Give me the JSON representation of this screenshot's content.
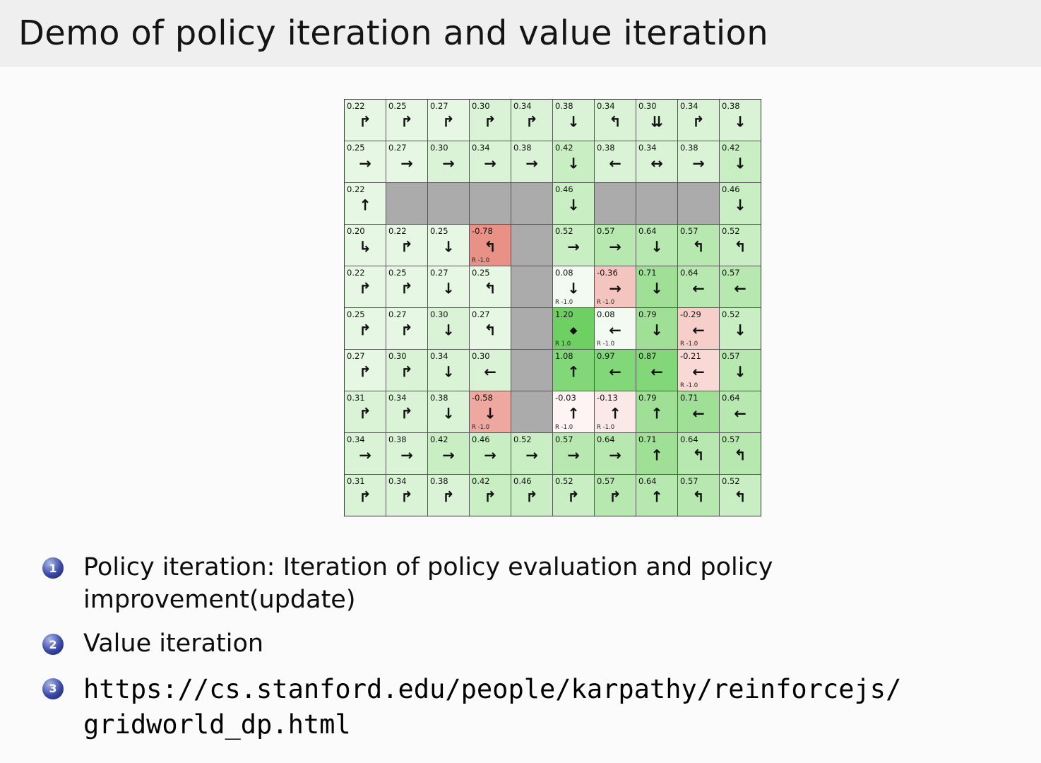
{
  "title": "Demo of policy iteration and value iteration",
  "list": [
    {
      "num": "1",
      "text": "Policy iteration: Iteration of policy evaluation and policy improvement(update)"
    },
    {
      "num": "2",
      "text": "Value iteration"
    },
    {
      "num": "3",
      "text": "https://cs.stanford.edu/people/karpathy/reinforcejs/gridworld_dp.html"
    }
  ],
  "grid": {
    "wall_color": "#ababab",
    "goal_reward": "R 1.0",
    "penalty_reward": "R -1.0",
    "rows": [
      [
        {
          "v": "0.22",
          "a": "↱",
          "bg": "#e6f8e3"
        },
        {
          "v": "0.25",
          "a": "↱",
          "bg": "#e6f8e3"
        },
        {
          "v": "0.27",
          "a": "↱",
          "bg": "#e6f8e3"
        },
        {
          "v": "0.30",
          "a": "↱",
          "bg": "#daf3d6"
        },
        {
          "v": "0.34",
          "a": "↱",
          "bg": "#daf3d6"
        },
        {
          "v": "0.38",
          "a": "↓",
          "bg": "#daf3d6"
        },
        {
          "v": "0.34",
          "a": "↰",
          "bg": "#daf3d6"
        },
        {
          "v": "0.30",
          "a": "⇊",
          "bg": "#daf3d6"
        },
        {
          "v": "0.34",
          "a": "↱",
          "bg": "#daf3d6"
        },
        {
          "v": "0.38",
          "a": "↓",
          "bg": "#daf3d6"
        }
      ],
      [
        {
          "v": "0.25",
          "a": "→",
          "bg": "#e6f8e3"
        },
        {
          "v": "0.27",
          "a": "→",
          "bg": "#e6f8e3"
        },
        {
          "v": "0.30",
          "a": "→",
          "bg": "#daf3d6"
        },
        {
          "v": "0.34",
          "a": "→",
          "bg": "#daf3d6"
        },
        {
          "v": "0.38",
          "a": "→",
          "bg": "#daf3d6"
        },
        {
          "v": "0.42",
          "a": "↓",
          "bg": "#c9eec3"
        },
        {
          "v": "0.38",
          "a": "←",
          "bg": "#daf3d6"
        },
        {
          "v": "0.34",
          "a": "↔",
          "bg": "#daf3d6"
        },
        {
          "v": "0.38",
          "a": "→",
          "bg": "#daf3d6"
        },
        {
          "v": "0.42",
          "a": "↓",
          "bg": "#c9eec3"
        }
      ],
      [
        {
          "v": "0.22",
          "a": "↑",
          "bg": "#e6f8e3"
        },
        {
          "wall": true
        },
        {
          "wall": true
        },
        {
          "wall": true
        },
        {
          "wall": true
        },
        {
          "v": "0.46",
          "a": "↓",
          "bg": "#c9eec3"
        },
        {
          "wall": true
        },
        {
          "wall": true
        },
        {
          "wall": true
        },
        {
          "v": "0.46",
          "a": "↓",
          "bg": "#c9eec3"
        }
      ],
      [
        {
          "v": "0.20",
          "a": "↳",
          "bg": "#e6f8e3"
        },
        {
          "v": "0.22",
          "a": "↱",
          "bg": "#e6f8e3"
        },
        {
          "v": "0.25",
          "a": "↓",
          "bg": "#e6f8e3"
        },
        {
          "v": "-0.78",
          "a": "↰",
          "bg": "#ea9187",
          "r": "R -1.0"
        },
        {
          "wall": true
        },
        {
          "v": "0.52",
          "a": "→",
          "bg": "#c9eec3"
        },
        {
          "v": "0.57",
          "a": "→",
          "bg": "#b7e8af"
        },
        {
          "v": "0.64",
          "a": "↓",
          "bg": "#b7e8af"
        },
        {
          "v": "0.57",
          "a": "↰",
          "bg": "#b7e8af"
        },
        {
          "v": "0.52",
          "a": "↰",
          "bg": "#c9eec3"
        }
      ],
      [
        {
          "v": "0.22",
          "a": "↱",
          "bg": "#e6f8e3"
        },
        {
          "v": "0.25",
          "a": "↱",
          "bg": "#e6f8e3"
        },
        {
          "v": "0.27",
          "a": "↓",
          "bg": "#e6f8e3"
        },
        {
          "v": "0.25",
          "a": "↰",
          "bg": "#e6f8e3"
        },
        {
          "wall": true
        },
        {
          "v": "0.08",
          "a": "↓",
          "bg": "#f3faf1",
          "r": "R -1.0"
        },
        {
          "v": "-0.36",
          "a": "→",
          "bg": "#f4c5bf",
          "r": "R -1.0"
        },
        {
          "v": "0.71",
          "a": "↓",
          "bg": "#a0e096"
        },
        {
          "v": "0.64",
          "a": "←",
          "bg": "#b7e8af"
        },
        {
          "v": "0.57",
          "a": "←",
          "bg": "#b7e8af"
        }
      ],
      [
        {
          "v": "0.25",
          "a": "↱",
          "bg": "#e6f8e3"
        },
        {
          "v": "0.27",
          "a": "↱",
          "bg": "#e6f8e3"
        },
        {
          "v": "0.30",
          "a": "↓",
          "bg": "#daf3d6"
        },
        {
          "v": "0.27",
          "a": "↰",
          "bg": "#e6f8e3"
        },
        {
          "wall": true
        },
        {
          "v": "1.20",
          "a": "◆",
          "bg": "#6ed062",
          "r": "R 1.0",
          "goal": true
        },
        {
          "v": "0.08",
          "a": "←",
          "bg": "#f3faf1",
          "r": "R -1.0"
        },
        {
          "v": "0.79",
          "a": "↓",
          "bg": "#a0e096"
        },
        {
          "v": "-0.29",
          "a": "←",
          "bg": "#f6cfca",
          "r": "R -1.0"
        },
        {
          "v": "0.52",
          "a": "↓",
          "bg": "#c9eec3"
        }
      ],
      [
        {
          "v": "0.27",
          "a": "↱",
          "bg": "#e6f8e3"
        },
        {
          "v": "0.30",
          "a": "↱",
          "bg": "#daf3d6"
        },
        {
          "v": "0.34",
          "a": "↓",
          "bg": "#daf3d6"
        },
        {
          "v": "0.30",
          "a": "←",
          "bg": "#daf3d6"
        },
        {
          "wall": true
        },
        {
          "v": "1.08",
          "a": "↑",
          "bg": "#82d878"
        },
        {
          "v": "0.97",
          "a": "←",
          "bg": "#82d878"
        },
        {
          "v": "0.87",
          "a": "←",
          "bg": "#82d878"
        },
        {
          "v": "-0.21",
          "a": "←",
          "bg": "#f8d9d5",
          "r": "R -1.0"
        },
        {
          "v": "0.57",
          "a": "↓",
          "bg": "#b7e8af"
        }
      ],
      [
        {
          "v": "0.31",
          "a": "↱",
          "bg": "#daf3d6"
        },
        {
          "v": "0.34",
          "a": "↱",
          "bg": "#daf3d6"
        },
        {
          "v": "0.38",
          "a": "↓",
          "bg": "#daf3d6"
        },
        {
          "v": "-0.58",
          "a": "↓",
          "bg": "#efa89f",
          "r": "R -1.0"
        },
        {
          "wall": true
        },
        {
          "v": "-0.03",
          "a": "↑",
          "bg": "#fdf4f3",
          "r": "R -1.0"
        },
        {
          "v": "-0.13",
          "a": "↑",
          "bg": "#fbe9e7",
          "r": "R -1.0"
        },
        {
          "v": "0.79",
          "a": "↑",
          "bg": "#a0e096"
        },
        {
          "v": "0.71",
          "a": "←",
          "bg": "#a0e096"
        },
        {
          "v": "0.64",
          "a": "←",
          "bg": "#b7e8af"
        }
      ],
      [
        {
          "v": "0.34",
          "a": "→",
          "bg": "#daf3d6"
        },
        {
          "v": "0.38",
          "a": "→",
          "bg": "#daf3d6"
        },
        {
          "v": "0.42",
          "a": "→",
          "bg": "#c9eec3"
        },
        {
          "v": "0.46",
          "a": "→",
          "bg": "#c9eec3"
        },
        {
          "v": "0.52",
          "a": "→",
          "bg": "#c9eec3"
        },
        {
          "v": "0.57",
          "a": "→",
          "bg": "#b7e8af"
        },
        {
          "v": "0.64",
          "a": "→",
          "bg": "#b7e8af"
        },
        {
          "v": "0.71",
          "a": "↑",
          "bg": "#a0e096"
        },
        {
          "v": "0.64",
          "a": "↰",
          "bg": "#b7e8af"
        },
        {
          "v": "0.57",
          "a": "↰",
          "bg": "#b7e8af"
        }
      ],
      [
        {
          "v": "0.31",
          "a": "↱",
          "bg": "#daf3d6"
        },
        {
          "v": "0.34",
          "a": "↱",
          "bg": "#daf3d6"
        },
        {
          "v": "0.38",
          "a": "↱",
          "bg": "#daf3d6"
        },
        {
          "v": "0.42",
          "a": "↱",
          "bg": "#c9eec3"
        },
        {
          "v": "0.46",
          "a": "↱",
          "bg": "#c9eec3"
        },
        {
          "v": "0.52",
          "a": "↱",
          "bg": "#c9eec3"
        },
        {
          "v": "0.57",
          "a": "↱",
          "bg": "#b7e8af"
        },
        {
          "v": "0.64",
          "a": "↑",
          "bg": "#b7e8af"
        },
        {
          "v": "0.57",
          "a": "↰",
          "bg": "#b7e8af"
        },
        {
          "v": "0.52",
          "a": "↰",
          "bg": "#c9eec3"
        }
      ]
    ]
  }
}
